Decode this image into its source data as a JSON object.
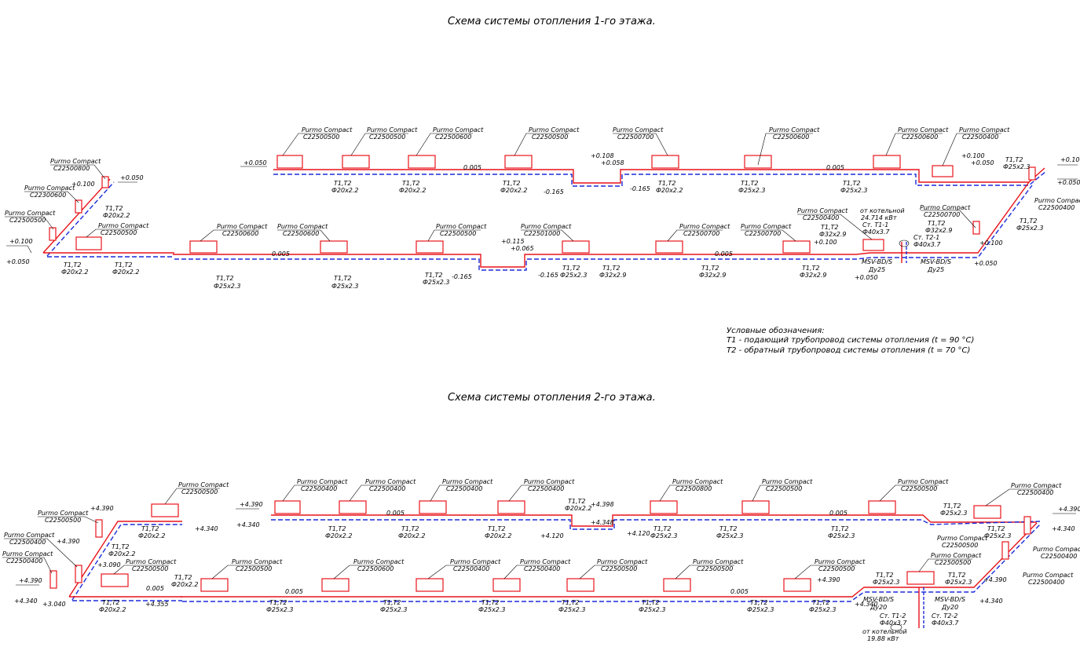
{
  "titles": {
    "floor1": "Схема системы отопления 1-го этажа.",
    "floor2": "Схема системы отопления 2-го этажа."
  },
  "legend": {
    "heading": "Условные обозначения:",
    "t1": "Т1 - подающий трубопровод системы отопления (t = 90 °С)",
    "t2": "Т2 - обратный трубопровод системы отопления (t = 70 °С)"
  },
  "colors": {
    "supply": "#e8141b",
    "return": "#1c2bd8"
  },
  "brand": "Purmo Compact",
  "pipe_tag": "Т1,Т2",
  "floor1": {
    "radiators": [
      {
        "model": "C22500800"
      },
      {
        "model": "C22300600"
      },
      {
        "model": "C22500500"
      },
      {
        "model": "C22500500"
      },
      {
        "model": "C22500500"
      },
      {
        "model": "C22500500"
      },
      {
        "model": "C22500600"
      },
      {
        "model": "C22500500"
      },
      {
        "model": "C22500700"
      },
      {
        "model": "C22500600"
      },
      {
        "model": "C22500600"
      },
      {
        "model": "C22500400"
      },
      {
        "model": "C22500600"
      },
      {
        "model": "C22500600"
      },
      {
        "model": "C22500500"
      },
      {
        "model": "C22501000"
      },
      {
        "model": "C22500700"
      },
      {
        "model": "C22500700"
      },
      {
        "model": "C22500400"
      },
      {
        "model": "C22500700"
      },
      {
        "model": "C22500400"
      }
    ],
    "pipe_sizes": [
      "Ф20х2.2",
      "Ф20х2.2",
      "Ф20х2.2",
      "Ф20х2.2",
      "Ф20х2.2",
      "Ф20х2.2",
      "Ф25х2.3",
      "Ф25х2.3",
      "Ф25х2.3",
      "Ф25х2.3",
      "Ф25х2.3",
      "Ф25х2.3",
      "Ф25х2.3",
      "Ф32х2.9",
      "Ф32х2.9",
      "Ф32х2.9",
      "Ф32х2.9",
      "Ф32х2.9",
      "Ф25х2.3"
    ],
    "levels": [
      "+0.050",
      "+0.100",
      "+0.050",
      "+0.100",
      "+0.050",
      "0.005",
      "+0.108",
      "+0.058",
      "-0.165",
      "-0.165",
      "0.005",
      "+0.100",
      "+0.050",
      "+0.100",
      "+0.050",
      "0.005",
      "+0.115",
      "+0.065",
      "-0.165",
      "-0.165",
      "0.005",
      "+0.100",
      "+0.050",
      "+0.100",
      "+0.050"
    ],
    "boiler": {
      "label": "от котельной",
      "power": "24.714 кВт",
      "st1": "Ст. Т1-1",
      "st2": "Ст. Т2-1",
      "size": "Ф40х3.7",
      "valve": "MSV-BD/S",
      "dn": "Ду25"
    }
  },
  "floor2": {
    "radiators": [
      {
        "model": "C22500400"
      },
      {
        "model": "C22500400"
      },
      {
        "model": "C22500500"
      },
      {
        "model": "C22500500"
      },
      {
        "model": "C22500400"
      },
      {
        "model": "C22500400"
      },
      {
        "model": "C22500400"
      },
      {
        "model": "C22500400"
      },
      {
        "model": "C22500400"
      },
      {
        "model": "C22500800"
      },
      {
        "model": "C22500500"
      },
      {
        "model": "C22500500"
      },
      {
        "model": "C22500400"
      },
      {
        "model": "C22500500"
      },
      {
        "model": "C22500600"
      },
      {
        "model": "C22500400"
      },
      {
        "model": "C22500400"
      },
      {
        "model": "C22500500"
      },
      {
        "model": "C22500500"
      },
      {
        "model": "C22500500"
      },
      {
        "model": "C22500500"
      },
      {
        "model": "C22500400"
      },
      {
        "model": "C22500400"
      }
    ],
    "pipe_sizes": [
      "Ф20х2.2",
      "Ф20х2.2",
      "Ф20х2.2",
      "Ф20х2.2",
      "Ф20х2.2",
      "Ф20х2.2",
      "Ф20х2.2",
      "Ф25х2.3",
      "Ф25х2.3",
      "Ф25х2.3",
      "Ф25х2.3",
      "Ф25х2.3",
      "Ф25х2.3",
      "Ф25х2.3",
      "Ф25х2.3",
      "Ф25х2.3",
      "Ф25х2.3",
      "Ф25х2.3",
      "Ф25х2.3",
      "Ф25х2.3",
      "Ф25х2.3",
      "Ф25х2.3"
    ],
    "levels": [
      "+4.390",
      "+4.340",
      "+4.390",
      "+4.390",
      "+3.090",
      "+4.390",
      "+4.340",
      "+3.040",
      "+4.355",
      "0.005",
      "+4.398",
      "+4.348",
      "+4.120",
      "+4.120",
      "0.005",
      "+4.390",
      "+4.340",
      "0.005",
      "0.005",
      "+4.390",
      "+4.340",
      "+4.390",
      "+4.340"
    ],
    "boiler": {
      "label": "от котельной",
      "power": "19.88 кВт",
      "st1": "Ст. Т1-2",
      "st2": "Ст. Т2-2",
      "size": "Ф40х3.7",
      "valve": "MSV-BD/S",
      "dn": "Ду20"
    }
  }
}
